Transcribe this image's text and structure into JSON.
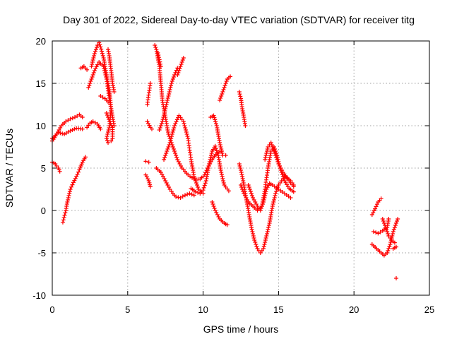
{
  "chart_data": {
    "type": "scatter",
    "title": "Day 301 of 2022, Sidereal Day-to-day VTEC variation (SDTVAR) for receiver titg",
    "xlabel": "GPS time / hours",
    "ylabel": "SDTVAR / TECUs",
    "xlim": [
      0,
      25
    ],
    "ylim": [
      -10,
      20
    ],
    "xticks": [
      0,
      5,
      10,
      15,
      20,
      25
    ],
    "yticks": [
      -10,
      -5,
      0,
      5,
      10,
      15,
      20
    ],
    "grid": true,
    "marker": "plus",
    "color": "#ff0000",
    "segments": [
      [
        [
          0.0,
          8.2
        ],
        [
          0.3,
          9.0
        ],
        [
          0.6,
          10.0
        ],
        [
          0.9,
          10.5
        ],
        [
          1.2,
          10.8
        ],
        [
          1.5,
          11.0
        ],
        [
          1.8,
          11.3
        ],
        [
          2.0,
          11.0
        ]
      ],
      [
        [
          0.0,
          8.5
        ],
        [
          0.4,
          9.2
        ],
        [
          0.8,
          9.0
        ],
        [
          1.2,
          9.4
        ],
        [
          1.6,
          9.7
        ],
        [
          2.0,
          9.6
        ]
      ],
      [
        [
          0.0,
          5.7
        ],
        [
          0.2,
          5.5
        ],
        [
          0.4,
          5.0
        ],
        [
          0.5,
          4.6
        ]
      ],
      [
        [
          0.7,
          -1.4
        ],
        [
          0.9,
          0.0
        ],
        [
          1.0,
          1.0
        ],
        [
          1.2,
          2.5
        ],
        [
          1.4,
          3.3
        ],
        [
          1.6,
          4.0
        ],
        [
          1.8,
          4.8
        ],
        [
          2.0,
          5.7
        ],
        [
          2.2,
          6.3
        ]
      ],
      [
        [
          1.9,
          16.8
        ],
        [
          2.1,
          17.0
        ],
        [
          2.3,
          16.6
        ]
      ],
      [
        [
          2.3,
          9.8
        ],
        [
          2.5,
          10.3
        ],
        [
          2.7,
          10.5
        ],
        [
          3.0,
          10.2
        ],
        [
          3.2,
          9.6
        ]
      ],
      [
        [
          2.4,
          14.5
        ],
        [
          2.6,
          15.5
        ],
        [
          2.8,
          16.5
        ],
        [
          3.0,
          17.2
        ],
        [
          3.1,
          17.5
        ],
        [
          3.4,
          17.0
        ],
        [
          3.6,
          15.5
        ],
        [
          3.8,
          13.0
        ],
        [
          4.0,
          11.0
        ],
        [
          4.1,
          10.0
        ]
      ],
      [
        [
          2.6,
          17.0
        ],
        [
          2.8,
          18.5
        ],
        [
          3.0,
          19.5
        ],
        [
          3.1,
          19.8
        ],
        [
          3.2,
          19.3
        ],
        [
          3.4,
          18.0
        ],
        [
          3.6,
          16.0
        ],
        [
          3.8,
          14.0
        ],
        [
          3.9,
          12.0
        ],
        [
          3.8,
          10.0
        ],
        [
          3.6,
          8.5
        ],
        [
          3.7,
          8.0
        ]
      ],
      [
        [
          3.2,
          13.5
        ],
        [
          3.5,
          13.2
        ],
        [
          3.7,
          12.8
        ]
      ],
      [
        [
          3.7,
          19.0
        ],
        [
          3.8,
          18.0
        ],
        [
          3.9,
          16.5
        ],
        [
          4.0,
          15.0
        ],
        [
          4.1,
          14.0
        ]
      ],
      [
        [
          3.6,
          11.5
        ],
        [
          3.8,
          10.5
        ],
        [
          4.0,
          9.8
        ],
        [
          4.0,
          8.5
        ],
        [
          3.9,
          8.2
        ]
      ],
      [
        [
          6.2,
          5.8
        ],
        [
          6.4,
          5.7
        ]
      ],
      [
        [
          6.2,
          4.2
        ],
        [
          6.4,
          3.5
        ],
        [
          6.5,
          2.8
        ]
      ],
      [
        [
          6.3,
          12.5
        ],
        [
          6.5,
          15.0
        ]
      ],
      [
        [
          6.3,
          10.5
        ],
        [
          6.5,
          9.8
        ],
        [
          6.6,
          9.6
        ]
      ],
      [
        [
          6.8,
          19.5
        ],
        [
          6.9,
          19.0
        ],
        [
          7.0,
          18.0
        ],
        [
          7.1,
          17.0
        ],
        [
          7.2,
          15.0
        ],
        [
          7.3,
          13.0
        ],
        [
          7.5,
          11.0
        ],
        [
          7.7,
          9.0
        ],
        [
          8.0,
          7.5
        ],
        [
          8.3,
          6.0
        ],
        [
          8.6,
          5.0
        ],
        [
          9.0,
          4.2
        ],
        [
          9.4,
          3.7
        ],
        [
          9.8,
          3.7
        ],
        [
          10.1,
          4.2
        ],
        [
          10.3,
          5.0
        ],
        [
          10.6,
          6.0
        ],
        [
          10.9,
          6.8
        ],
        [
          11.2,
          7.0
        ]
      ],
      [
        [
          7.0,
          18.6
        ],
        [
          7.2,
          17.0
        ]
      ],
      [
        [
          7.1,
          9.5
        ],
        [
          7.3,
          10.5
        ],
        [
          7.5,
          12.0
        ],
        [
          7.7,
          13.5
        ],
        [
          7.9,
          15.0
        ],
        [
          8.1,
          16.0
        ],
        [
          8.3,
          16.8
        ]
      ],
      [
        [
          6.9,
          5.0
        ],
        [
          7.2,
          4.5
        ],
        [
          7.5,
          3.5
        ],
        [
          7.8,
          2.5
        ],
        [
          8.0,
          2.0
        ],
        [
          8.2,
          1.6
        ],
        [
          8.5,
          1.5
        ],
        [
          8.8,
          1.8
        ],
        [
          9.1,
          2.0
        ],
        [
          9.4,
          1.8
        ]
      ],
      [
        [
          7.4,
          6.0
        ],
        [
          7.8,
          8.0
        ],
        [
          8.1,
          10.0
        ],
        [
          8.4,
          11.2
        ],
        [
          8.7,
          10.5
        ],
        [
          9.0,
          8.5
        ],
        [
          9.2,
          6.0
        ],
        [
          9.4,
          4.0
        ],
        [
          9.7,
          2.5
        ],
        [
          10.0,
          2.0
        ]
      ],
      [
        [
          8.3,
          16.0
        ],
        [
          8.5,
          17.0
        ],
        [
          8.7,
          18.0
        ]
      ],
      [
        [
          9.2,
          2.6
        ],
        [
          9.5,
          2.2
        ],
        [
          9.8,
          2.0
        ],
        [
          10.0,
          2.4
        ],
        [
          10.2,
          3.5
        ],
        [
          10.4,
          5.5
        ],
        [
          10.6,
          7.0
        ],
        [
          10.8,
          7.6
        ],
        [
          11.0,
          6.5
        ],
        [
          11.2,
          4.5
        ],
        [
          11.4,
          3.0
        ],
        [
          11.7,
          2.3
        ]
      ],
      [
        [
          10.5,
          11.0
        ],
        [
          10.7,
          11.2
        ],
        [
          10.9,
          10.0
        ],
        [
          11.1,
          8.0
        ],
        [
          11.3,
          6.5
        ],
        [
          11.5,
          6.5
        ]
      ],
      [
        [
          10.6,
          1.0
        ],
        [
          10.8,
          0.0
        ],
        [
          11.1,
          -1.0
        ],
        [
          11.4,
          -1.5
        ],
        [
          11.6,
          -1.7
        ]
      ],
      [
        [
          11.1,
          13.0
        ],
        [
          11.2,
          13.5
        ],
        [
          11.4,
          14.5
        ],
        [
          11.6,
          15.5
        ],
        [
          11.8,
          15.8
        ]
      ],
      [
        [
          12.4,
          14.0
        ],
        [
          12.5,
          13.2
        ],
        [
          12.6,
          12.0
        ],
        [
          12.7,
          11.0
        ],
        [
          12.8,
          10.0
        ]
      ],
      [
        [
          12.4,
          5.5
        ],
        [
          12.6,
          4.0
        ],
        [
          12.8,
          2.0
        ],
        [
          13.0,
          0.0
        ],
        [
          13.2,
          -2.0
        ],
        [
          13.4,
          -3.5
        ],
        [
          13.6,
          -4.5
        ],
        [
          13.8,
          -5.0
        ],
        [
          14.0,
          -4.5
        ],
        [
          14.2,
          -3.0
        ],
        [
          14.4,
          -1.5
        ],
        [
          14.6,
          0.5
        ],
        [
          14.8,
          2.0
        ],
        [
          15.0,
          3.0
        ],
        [
          15.2,
          3.5
        ],
        [
          15.4,
          4.0
        ],
        [
          15.6,
          3.8
        ],
        [
          15.8,
          3.5
        ],
        [
          16.0,
          3.0
        ]
      ],
      [
        [
          12.5,
          3.0
        ],
        [
          12.7,
          2.0
        ],
        [
          13.0,
          1.0
        ],
        [
          13.3,
          0.5
        ],
        [
          13.6,
          0.0
        ],
        [
          13.9,
          0.5
        ],
        [
          14.1,
          2.5
        ],
        [
          14.3,
          5.0
        ],
        [
          14.5,
          7.0
        ],
        [
          14.7,
          7.5
        ],
        [
          14.9,
          6.5
        ],
        [
          15.1,
          5.0
        ],
        [
          15.4,
          3.5
        ],
        [
          15.7,
          2.6
        ],
        [
          16.0,
          2.2
        ]
      ],
      [
        [
          13.0,
          3.0
        ],
        [
          13.3,
          1.5
        ],
        [
          13.6,
          0.5
        ],
        [
          13.8,
          0.0
        ],
        [
          14.0,
          1.0
        ],
        [
          14.2,
          2.5
        ],
        [
          14.4,
          3.2
        ],
        [
          14.6,
          3.0
        ],
        [
          15.0,
          2.5
        ],
        [
          15.4,
          2.0
        ],
        [
          15.8,
          1.5
        ]
      ],
      [
        [
          14.1,
          6.0
        ],
        [
          14.3,
          7.5
        ],
        [
          14.5,
          8.0
        ],
        [
          14.7,
          7.0
        ],
        [
          15.0,
          5.5
        ],
        [
          15.3,
          4.5
        ],
        [
          15.7,
          3.5
        ],
        [
          16.0,
          2.8
        ]
      ],
      [
        [
          21.2,
          -0.5
        ],
        [
          21.4,
          0.2
        ],
        [
          21.6,
          1.0
        ],
        [
          21.8,
          1.4
        ]
      ],
      [
        [
          21.3,
          -2.5
        ],
        [
          21.6,
          -2.7
        ],
        [
          21.9,
          -2.4
        ],
        [
          22.2,
          -2.0
        ],
        [
          22.3,
          -1.0
        ]
      ],
      [
        [
          21.2,
          -4.0
        ],
        [
          21.5,
          -4.5
        ],
        [
          21.8,
          -5.0
        ],
        [
          22.0,
          -5.3
        ],
        [
          22.2,
          -5.0
        ],
        [
          22.4,
          -4.0
        ],
        [
          22.6,
          -2.5
        ],
        [
          22.8,
          -1.5
        ],
        [
          22.9,
          -1.0
        ]
      ],
      [
        [
          21.9,
          -1.0
        ],
        [
          22.1,
          -2.0
        ],
        [
          22.3,
          -3.0
        ],
        [
          22.5,
          -3.5
        ],
        [
          22.7,
          -3.8
        ]
      ],
      [
        [
          22.6,
          -4.5
        ],
        [
          22.8,
          -4.3
        ]
      ],
      [
        [
          22.8,
          -8.0
        ]
      ]
    ]
  }
}
